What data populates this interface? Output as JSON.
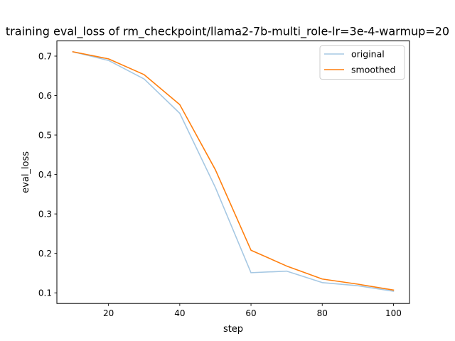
{
  "chart_data": {
    "type": "line",
    "title": "training eval_loss of rm_checkpoint/llama2-7b-multi_role-lr=3e-4-warmup=20",
    "xlabel": "step",
    "ylabel": "eval_loss",
    "xlim": [
      5.5,
      104.5
    ],
    "ylim": [
      0.073,
      0.7385
    ],
    "x_ticks": [
      20,
      40,
      60,
      80,
      100
    ],
    "y_ticks": [
      0.1,
      0.2,
      0.3,
      0.4,
      0.5,
      0.6,
      0.7
    ],
    "legend_position": "top-right",
    "grid": false,
    "x": [
      10,
      20,
      30,
      40,
      50,
      60,
      70,
      80,
      90,
      100
    ],
    "series": [
      {
        "name": "original",
        "color": "#a6c8e3",
        "values": [
          0.711,
          0.689,
          0.642,
          0.555,
          0.367,
          0.151,
          0.155,
          0.126,
          0.118,
          0.104
        ]
      },
      {
        "name": "smoothed",
        "color": "#ff7f0e",
        "values": [
          0.711,
          0.693,
          0.653,
          0.577,
          0.412,
          0.208,
          0.168,
          0.135,
          0.122,
          0.107
        ]
      }
    ]
  }
}
